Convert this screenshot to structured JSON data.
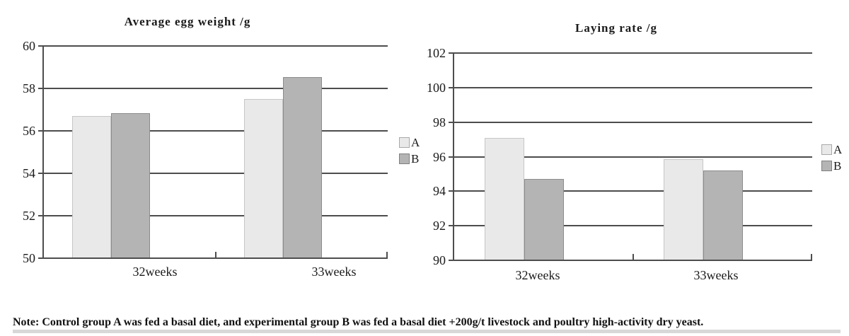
{
  "chart_data": [
    {
      "type": "bar",
      "title": "Average egg weight /g",
      "categories": [
        "32weeks",
        "33weeks"
      ],
      "series": [
        {
          "name": "A",
          "values": [
            56.7,
            57.5
          ]
        },
        {
          "name": "B",
          "values": [
            56.85,
            58.55
          ]
        }
      ],
      "ylim": [
        50,
        60
      ],
      "ytick_step": 2,
      "grid": true,
      "legend_position": "right"
    },
    {
      "type": "bar",
      "title": "Laying rate /g",
      "categories": [
        "32weeks",
        "33weeks"
      ],
      "series": [
        {
          "name": "A",
          "values": [
            97.1,
            95.85
          ]
        },
        {
          "name": "B",
          "values": [
            94.7,
            95.2
          ]
        }
      ],
      "ylim": [
        90,
        102
      ],
      "ytick_step": 2,
      "grid": true,
      "legend_position": "right"
    }
  ],
  "colors": {
    "series_a_fill": "#e9e9e9",
    "series_a_border": "#c6c6c6",
    "series_b_fill": "#b4b4b4",
    "series_b_border": "#8c8c8c",
    "grid_line": "#4d4d4d",
    "note_stripe": "#d8d8d8",
    "text": "#1a1a1a"
  },
  "note": "Note: Control group A was fed a basal diet, and experimental group B was fed a basal diet +200g/t livestock and poultry high-activity dry yeast."
}
